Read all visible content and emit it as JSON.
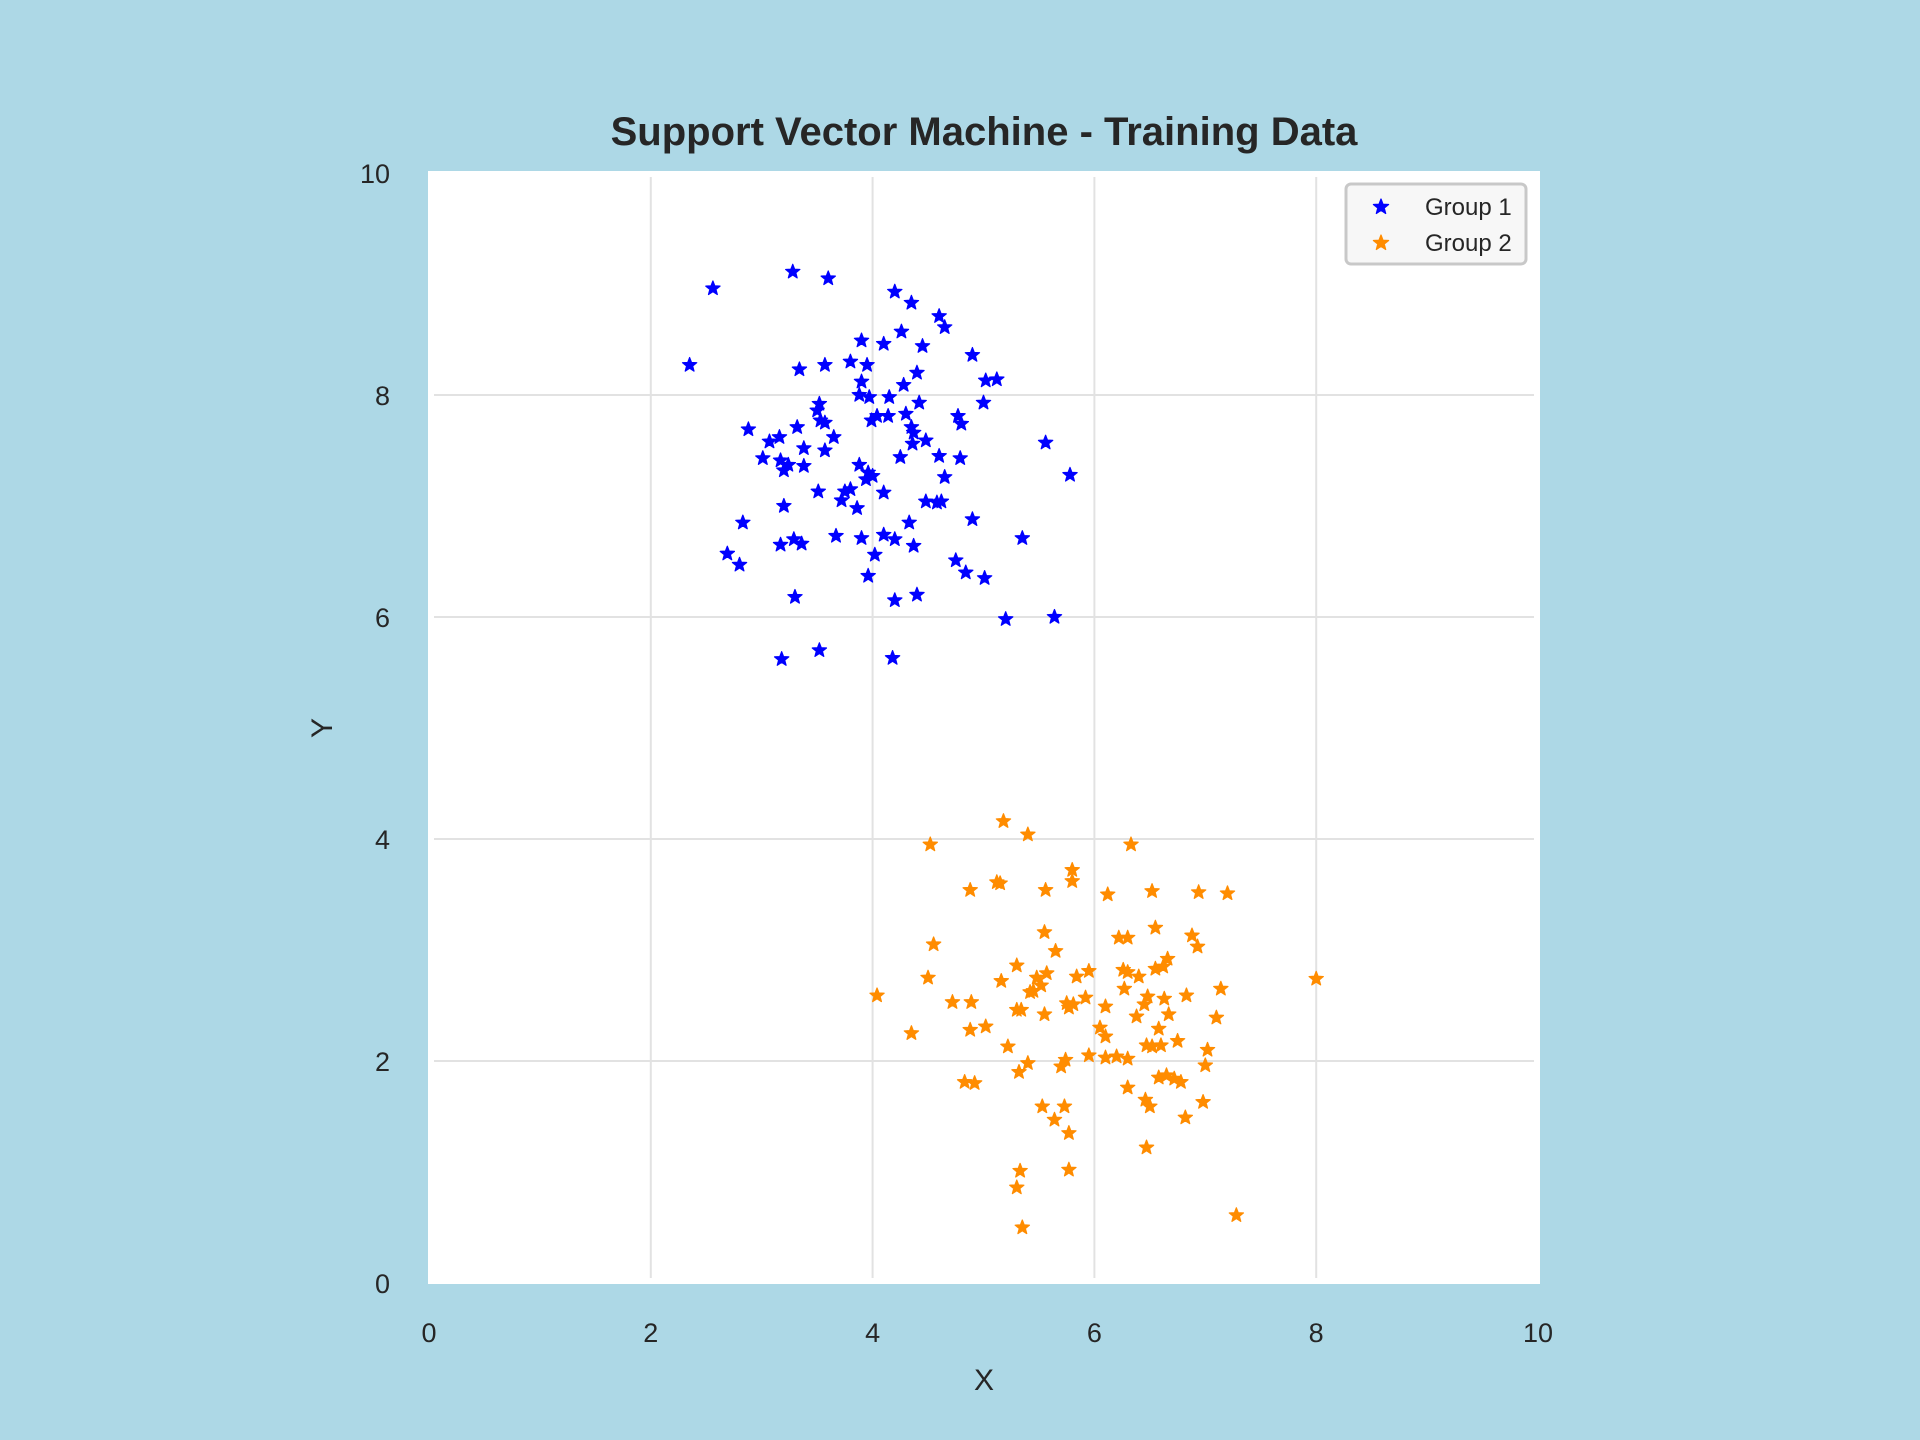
{
  "chart_data": {
    "type": "scatter",
    "title": "Support Vector Machine - Training Data",
    "xlabel": "X",
    "ylabel": "Y",
    "xlim": [
      0,
      10
    ],
    "ylim": [
      0,
      10
    ],
    "xticks": [
      "0",
      "2",
      "4",
      "6",
      "8",
      "10"
    ],
    "yticks": [
      "0",
      "2",
      "4",
      "6",
      "8",
      "10"
    ],
    "grid": true,
    "legend_position": "top-right",
    "marker": "star",
    "series": [
      {
        "name": "Group 1",
        "color": "#0000ff",
        "points": [
          [
            2.35,
            8.27
          ],
          [
            2.56,
            8.96
          ],
          [
            3.28,
            9.11
          ],
          [
            3.6,
            9.05
          ],
          [
            4.2,
            8.93
          ],
          [
            4.35,
            8.83
          ],
          [
            4.6,
            8.71
          ],
          [
            4.65,
            8.61
          ],
          [
            4.26,
            8.57
          ],
          [
            3.9,
            8.49
          ],
          [
            4.1,
            8.46
          ],
          [
            4.45,
            8.44
          ],
          [
            4.9,
            8.36
          ],
          [
            3.8,
            8.3
          ],
          [
            3.95,
            8.27
          ],
          [
            3.57,
            8.27
          ],
          [
            3.34,
            8.23
          ],
          [
            4.4,
            8.2
          ],
          [
            5.02,
            8.13
          ],
          [
            5.12,
            8.14
          ],
          [
            3.9,
            8.12
          ],
          [
            4.28,
            8.09
          ],
          [
            4.15,
            7.98
          ],
          [
            3.88,
            8.0
          ],
          [
            3.97,
            7.98
          ],
          [
            4.42,
            7.93
          ],
          [
            5.0,
            7.93
          ],
          [
            3.52,
            7.92
          ],
          [
            3.5,
            7.86
          ],
          [
            4.3,
            7.83
          ],
          [
            4.14,
            7.81
          ],
          [
            4.04,
            7.81
          ],
          [
            4.77,
            7.81
          ],
          [
            3.99,
            7.77
          ],
          [
            4.8,
            7.74
          ],
          [
            3.53,
            7.77
          ],
          [
            3.57,
            7.75
          ],
          [
            3.32,
            7.71
          ],
          [
            2.88,
            7.69
          ],
          [
            4.35,
            7.71
          ],
          [
            3.65,
            7.62
          ],
          [
            4.37,
            7.66
          ],
          [
            3.16,
            7.62
          ],
          [
            3.07,
            7.58
          ],
          [
            4.48,
            7.59
          ],
          [
            4.36,
            7.56
          ],
          [
            3.38,
            7.52
          ],
          [
            3.57,
            7.5
          ],
          [
            5.56,
            7.57
          ],
          [
            4.25,
            7.44
          ],
          [
            4.79,
            7.43
          ],
          [
            4.6,
            7.45
          ],
          [
            3.01,
            7.43
          ],
          [
            3.17,
            7.41
          ],
          [
            3.24,
            7.37
          ],
          [
            3.2,
            7.32
          ],
          [
            3.38,
            7.36
          ],
          [
            3.88,
            7.37
          ],
          [
            3.96,
            7.3
          ],
          [
            4.0,
            7.27
          ],
          [
            5.78,
            7.28
          ],
          [
            4.65,
            7.26
          ],
          [
            3.94,
            7.24
          ],
          [
            3.8,
            7.15
          ],
          [
            3.51,
            7.13
          ],
          [
            3.75,
            7.13
          ],
          [
            3.72,
            7.05
          ],
          [
            4.1,
            7.12
          ],
          [
            4.48,
            7.04
          ],
          [
            4.58,
            7.03
          ],
          [
            4.62,
            7.04
          ],
          [
            3.2,
            7.0
          ],
          [
            3.86,
            6.98
          ],
          [
            2.83,
            6.85
          ],
          [
            4.33,
            6.85
          ],
          [
            4.9,
            6.88
          ],
          [
            4.1,
            6.74
          ],
          [
            4.2,
            6.7
          ],
          [
            3.9,
            6.71
          ],
          [
            3.67,
            6.73
          ],
          [
            5.35,
            6.71
          ],
          [
            3.29,
            6.7
          ],
          [
            3.17,
            6.65
          ],
          [
            3.36,
            6.66
          ],
          [
            4.37,
            6.64
          ],
          [
            2.69,
            6.57
          ],
          [
            2.8,
            6.47
          ],
          [
            4.02,
            6.56
          ],
          [
            4.75,
            6.51
          ],
          [
            4.84,
            6.4
          ],
          [
            3.96,
            6.37
          ],
          [
            5.01,
            6.35
          ],
          [
            4.4,
            6.2
          ],
          [
            4.2,
            6.15
          ],
          [
            3.3,
            6.18
          ],
          [
            5.2,
            5.98
          ],
          [
            5.64,
            6.0
          ],
          [
            3.52,
            5.7
          ],
          [
            3.18,
            5.62
          ],
          [
            4.18,
            5.63
          ]
        ]
      },
      {
        "name": "Group 2",
        "color": "#ff8c00",
        "points": [
          [
            5.18,
            4.16
          ],
          [
            5.4,
            4.04
          ],
          [
            4.52,
            3.95
          ],
          [
            6.33,
            3.95
          ],
          [
            5.8,
            3.72
          ],
          [
            5.8,
            3.62
          ],
          [
            5.12,
            3.61
          ],
          [
            5.15,
            3.6
          ],
          [
            4.88,
            3.54
          ],
          [
            5.56,
            3.54
          ],
          [
            6.12,
            3.5
          ],
          [
            6.52,
            3.53
          ],
          [
            6.94,
            3.52
          ],
          [
            7.2,
            3.51
          ],
          [
            6.55,
            3.2
          ],
          [
            5.55,
            3.16
          ],
          [
            6.22,
            3.11
          ],
          [
            6.3,
            3.11
          ],
          [
            6.88,
            3.13
          ],
          [
            4.55,
            3.05
          ],
          [
            6.93,
            3.03
          ],
          [
            5.65,
            2.99
          ],
          [
            6.66,
            2.92
          ],
          [
            5.3,
            2.86
          ],
          [
            6.26,
            2.82
          ],
          [
            6.3,
            2.8
          ],
          [
            5.95,
            2.81
          ],
          [
            6.55,
            2.83
          ],
          [
            6.62,
            2.85
          ],
          [
            5.57,
            2.79
          ],
          [
            5.84,
            2.76
          ],
          [
            5.48,
            2.75
          ],
          [
            6.4,
            2.76
          ],
          [
            4.5,
            2.75
          ],
          [
            8.0,
            2.74
          ],
          [
            5.16,
            2.72
          ],
          [
            5.52,
            2.68
          ],
          [
            6.27,
            2.65
          ],
          [
            7.14,
            2.65
          ],
          [
            5.42,
            2.62
          ],
          [
            5.45,
            2.63
          ],
          [
            6.48,
            2.58
          ],
          [
            4.04,
            2.59
          ],
          [
            6.83,
            2.59
          ],
          [
            5.92,
            2.57
          ],
          [
            6.63,
            2.56
          ],
          [
            4.72,
            2.53
          ],
          [
            4.89,
            2.53
          ],
          [
            5.75,
            2.52
          ],
          [
            5.81,
            2.51
          ],
          [
            5.77,
            2.48
          ],
          [
            6.45,
            2.51
          ],
          [
            6.1,
            2.49
          ],
          [
            5.3,
            2.46
          ],
          [
            5.34,
            2.46
          ],
          [
            5.55,
            2.42
          ],
          [
            6.67,
            2.42
          ],
          [
            6.38,
            2.4
          ],
          [
            7.1,
            2.39
          ],
          [
            6.05,
            2.3
          ],
          [
            5.02,
            2.31
          ],
          [
            6.58,
            2.29
          ],
          [
            4.35,
            2.25
          ],
          [
            4.88,
            2.28
          ],
          [
            6.1,
            2.22
          ],
          [
            6.75,
            2.18
          ],
          [
            5.22,
            2.13
          ],
          [
            6.52,
            2.13
          ],
          [
            6.6,
            2.14
          ],
          [
            6.47,
            2.14
          ],
          [
            7.02,
            2.1
          ],
          [
            5.95,
            2.05
          ],
          [
            6.2,
            2.04
          ],
          [
            6.1,
            2.03
          ],
          [
            6.3,
            2.02
          ],
          [
            5.74,
            2.01
          ],
          [
            5.4,
            1.98
          ],
          [
            5.7,
            1.95
          ],
          [
            7.0,
            1.96
          ],
          [
            5.32,
            1.9
          ],
          [
            6.65,
            1.87
          ],
          [
            6.58,
            1.85
          ],
          [
            6.78,
            1.81
          ],
          [
            6.72,
            1.84
          ],
          [
            4.83,
            1.81
          ],
          [
            4.92,
            1.8
          ],
          [
            6.3,
            1.76
          ],
          [
            6.46,
            1.65
          ],
          [
            6.98,
            1.63
          ],
          [
            6.5,
            1.59
          ],
          [
            5.53,
            1.59
          ],
          [
            5.73,
            1.59
          ],
          [
            6.82,
            1.49
          ],
          [
            5.64,
            1.47
          ],
          [
            5.77,
            1.35
          ],
          [
            6.47,
            1.22
          ],
          [
            5.33,
            1.01
          ],
          [
            5.77,
            1.02
          ],
          [
            5.3,
            0.86
          ],
          [
            7.28,
            0.61
          ],
          [
            5.35,
            0.5
          ]
        ]
      }
    ]
  }
}
